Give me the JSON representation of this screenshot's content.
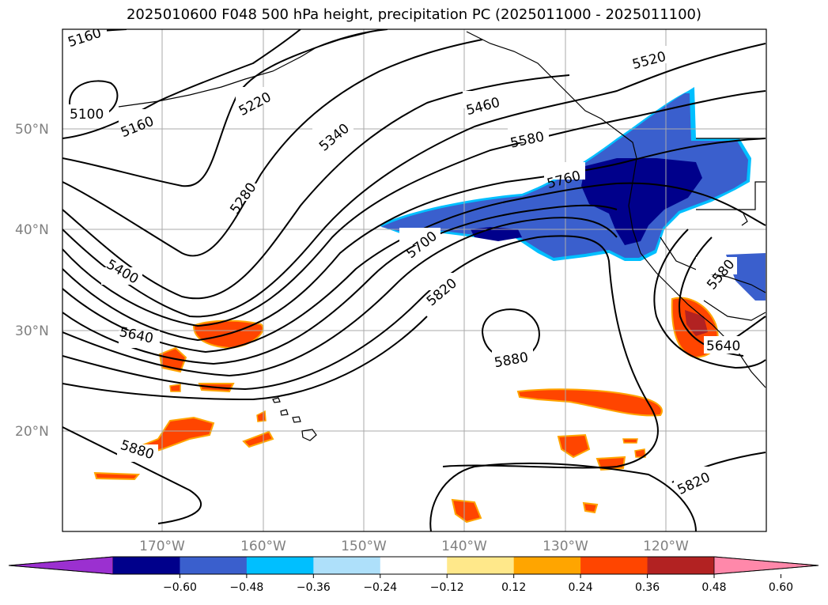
{
  "title": "2025010600 F048 500 hPa height, precipitation PC (2025011000 - 2025011100)",
  "map": {
    "lat_labels": [
      "50°N",
      "40°N",
      "30°N",
      "20°N"
    ],
    "lon_labels": [
      "170°W",
      "160°W",
      "150°W",
      "140°W",
      "130°W",
      "120°W"
    ],
    "contour_labels": [
      "5160",
      "5100",
      "5160",
      "5220",
      "5280",
      "5340",
      "5400",
      "5460",
      "5520",
      "5580",
      "5640",
      "5700",
      "5760",
      "5820",
      "5880",
      "5880",
      "5580",
      "5640",
      "5820"
    ]
  },
  "colorbar": {
    "colors": [
      "#9b30d0",
      "#00008b",
      "#3a5fcd",
      "#00bfff",
      "#aee0fa",
      "#ffffff",
      "#ffe88a",
      "#ffa500",
      "#ff4500",
      "#b22222",
      "#ff88aa"
    ],
    "ticks": [
      "−0.60",
      "−0.48",
      "−0.36",
      "−0.24",
      "−0.12",
      "0.12",
      "0.24",
      "0.36",
      "0.48",
      "0.60"
    ]
  }
}
